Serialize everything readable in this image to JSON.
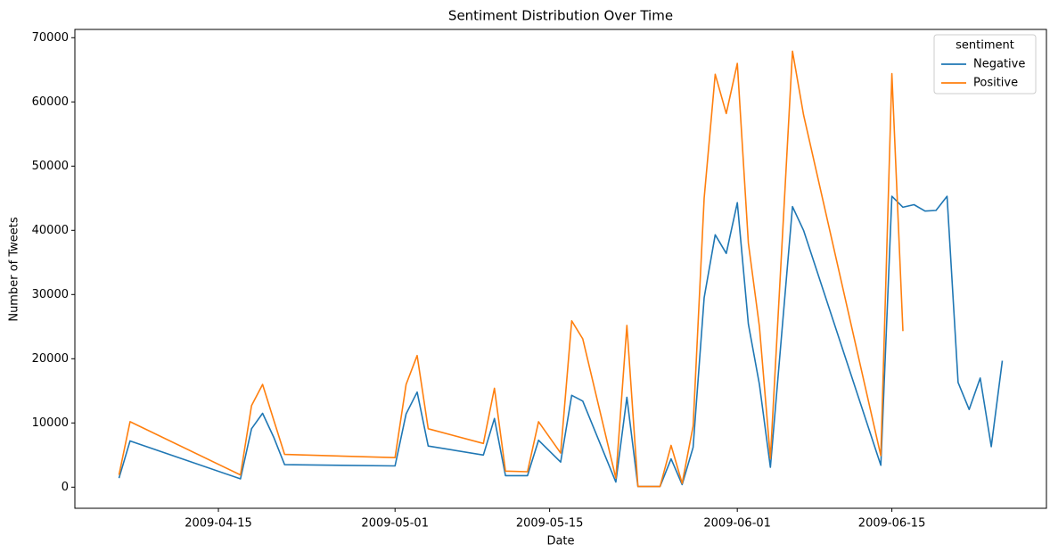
{
  "chart_data": {
    "type": "line",
    "title": "Sentiment Distribution Over Time",
    "x_label": "Date",
    "y_label": "Number of Tweets",
    "x": [
      "2009-04-06",
      "2009-04-07",
      "2009-04-17",
      "2009-04-18",
      "2009-04-19",
      "2009-04-20",
      "2009-04-21",
      "2009-05-01",
      "2009-05-02",
      "2009-05-03",
      "2009-05-04",
      "2009-05-09",
      "2009-05-10",
      "2009-05-11",
      "2009-05-13",
      "2009-05-14",
      "2009-05-16",
      "2009-05-17",
      "2009-05-18",
      "2009-05-21",
      "2009-05-22",
      "2009-05-23",
      "2009-05-25",
      "2009-05-26",
      "2009-05-27",
      "2009-05-28",
      "2009-05-29",
      "2009-05-30",
      "2009-05-31",
      "2009-06-01",
      "2009-06-02",
      "2009-06-03",
      "2009-06-04",
      "2009-06-06",
      "2009-06-07",
      "2009-06-14",
      "2009-06-15",
      "2009-06-16",
      "2009-06-17",
      "2009-06-18",
      "2009-06-19",
      "2009-06-20",
      "2009-06-21",
      "2009-06-22",
      "2009-06-23",
      "2009-06-24",
      "2009-06-25"
    ],
    "series": [
      {
        "name": "Negative",
        "color": "#1f77b4",
        "values": [
          1400,
          7200,
          1300,
          9100,
          11500,
          7800,
          3500,
          3300,
          11400,
          14800,
          6400,
          5000,
          10700,
          1800,
          1800,
          7300,
          3900,
          14300,
          13400,
          800,
          14000,
          100,
          100,
          4400,
          400,
          6200,
          29500,
          39300,
          36400,
          44300,
          25400,
          16000,
          3100,
          43700,
          40000,
          3400,
          45300,
          43600,
          44000,
          43000,
          43100,
          45300,
          16300,
          12100,
          17000,
          6300,
          19700
        ]
      },
      {
        "name": "Positive",
        "color": "#ff7f0e",
        "values": [
          1900,
          10200,
          1900,
          12700,
          16000,
          10500,
          5100,
          4600,
          16000,
          20500,
          9100,
          6800,
          15400,
          2500,
          2400,
          10200,
          5300,
          25900,
          23100,
          1400,
          25200,
          100,
          100,
          6500,
          600,
          9500,
          45000,
          64300,
          58200,
          66000,
          38000,
          25000,
          4500,
          67900,
          58000,
          4900,
          64400,
          24300,
          null,
          null,
          null,
          null,
          null,
          null,
          null,
          null,
          null
        ]
      }
    ],
    "xlim": [
      "2009-04-02",
      "2009-06-29"
    ],
    "xticks": [
      "2009-04-15",
      "2009-05-01",
      "2009-05-15",
      "2009-06-01",
      "2009-06-15"
    ],
    "ylim": [
      -3290,
      71290
    ],
    "yticks": [
      0,
      10000,
      20000,
      30000,
      40000,
      50000,
      60000,
      70000
    ],
    "legend_title": "sentiment",
    "legend_position": "upper right",
    "grid": false
  }
}
